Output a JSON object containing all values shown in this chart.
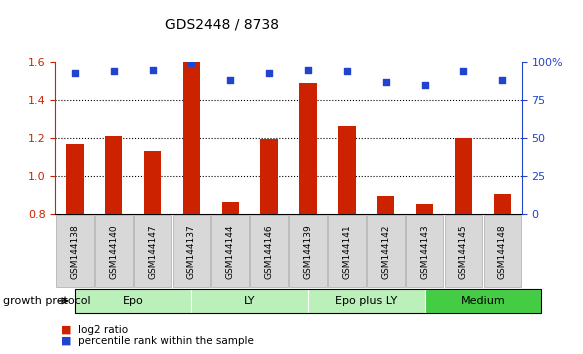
{
  "title": "GDS2448 / 8738",
  "samples": [
    "GSM144138",
    "GSM144140",
    "GSM144147",
    "GSM144137",
    "GSM144144",
    "GSM144146",
    "GSM144139",
    "GSM144141",
    "GSM144142",
    "GSM144143",
    "GSM144145",
    "GSM144148"
  ],
  "log2_ratio": [
    1.17,
    1.21,
    1.13,
    1.6,
    0.865,
    1.195,
    1.49,
    1.265,
    0.895,
    0.855,
    1.2,
    0.905
  ],
  "percentile_rank": [
    93,
    94,
    95,
    99,
    88,
    93,
    95,
    94,
    87,
    85,
    94,
    88
  ],
  "groups": [
    {
      "label": "Epo",
      "start": 0,
      "end": 3,
      "color": "#bbf0bb"
    },
    {
      "label": "LY",
      "start": 3,
      "end": 6,
      "color": "#bbf0bb"
    },
    {
      "label": "Epo plus LY",
      "start": 6,
      "end": 9,
      "color": "#bbf0bb"
    },
    {
      "label": "Medium",
      "start": 9,
      "end": 12,
      "color": "#44cc44"
    }
  ],
  "bar_color": "#cc2200",
  "dot_color": "#2244cc",
  "ylim_left": [
    0.8,
    1.6
  ],
  "ylim_right": [
    0,
    100
  ],
  "yticks_left": [
    0.8,
    1.0,
    1.2,
    1.4,
    1.6
  ],
  "yticks_right": [
    0,
    25,
    50,
    75,
    100
  ],
  "ytick_labels_right": [
    "0",
    "25",
    "50",
    "75",
    "100%"
  ],
  "group_label": "growth protocol",
  "legend_bar": "log2 ratio",
  "legend_dot": "percentile rank within the sample",
  "bar_width": 0.45,
  "xtick_bg": "#d8d8d8",
  "xtick_border": "#aaaaaa"
}
